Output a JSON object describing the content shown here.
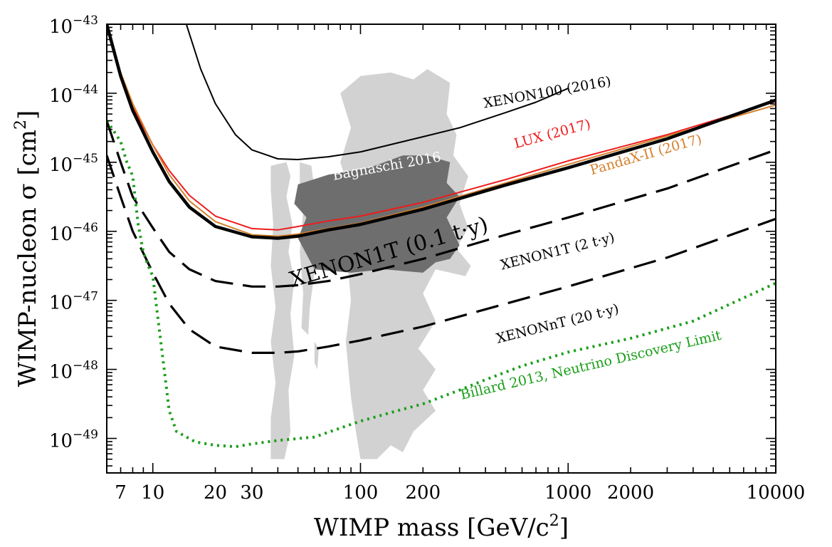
{
  "chart_data": {
    "type": "line",
    "title": "",
    "xlabel": "WIMP mass [GeV/c2]",
    "ylabel": "WIMP-nucleon σ [cm2]",
    "xscale": "log",
    "yscale": "log",
    "xlim": [
      6,
      10000
    ],
    "ylim_exp": [
      -49.5,
      -43
    ],
    "x_ticks": [
      {
        "value": 7,
        "label": "7"
      },
      {
        "value": 10,
        "label": "10"
      },
      {
        "value": 20,
        "label": "20"
      },
      {
        "value": 30,
        "label": "30"
      },
      {
        "value": 100,
        "label": "100"
      },
      {
        "value": 200,
        "label": "200"
      },
      {
        "value": 1000,
        "label": "1000"
      },
      {
        "value": 2000,
        "label": "2000"
      },
      {
        "value": 10000,
        "label": "10000"
      }
    ],
    "y_ticks": [
      {
        "exp": -43,
        "label": "10",
        "sup": "−43"
      },
      {
        "exp": -44,
        "label": "10",
        "sup": "−44"
      },
      {
        "exp": -45,
        "label": "10",
        "sup": "−45"
      },
      {
        "exp": -46,
        "label": "10",
        "sup": "−46"
      },
      {
        "exp": -47,
        "label": "10",
        "sup": "−47"
      },
      {
        "exp": -48,
        "label": "10",
        "sup": "−48"
      },
      {
        "exp": -49,
        "label": "10",
        "sup": "−49"
      }
    ],
    "regions": [
      {
        "name": "Bagnaschi 2016",
        "color": "#6e6e6e",
        "outline": [
          [
            50,
            -45.32
          ],
          [
            70,
            -45.18
          ],
          [
            110,
            -45.08
          ],
          [
            160,
            -44.9
          ],
          [
            210,
            -44.9
          ],
          [
            270,
            -45.0
          ],
          [
            260,
            -45.3
          ],
          [
            300,
            -45.5
          ],
          [
            260,
            -45.8
          ],
          [
            300,
            -46.2
          ],
          [
            270,
            -46.4
          ],
          [
            230,
            -46.45
          ],
          [
            200,
            -46.6
          ],
          [
            130,
            -46.55
          ],
          [
            90,
            -46.6
          ],
          [
            60,
            -46.55
          ],
          [
            50,
            -46.1
          ],
          [
            55,
            -45.8
          ],
          [
            48,
            -45.6
          ]
        ]
      },
      {
        "name": "",
        "color": "#d2d2d2",
        "outline": [
          [
            80,
            -44.0
          ],
          [
            100,
            -43.75
          ],
          [
            140,
            -43.7
          ],
          [
            180,
            -43.8
          ],
          [
            210,
            -43.65
          ],
          [
            270,
            -43.85
          ],
          [
            260,
            -44.3
          ],
          [
            290,
            -44.6
          ],
          [
            280,
            -44.9
          ],
          [
            330,
            -45.2
          ],
          [
            300,
            -45.6
          ],
          [
            330,
            -45.95
          ],
          [
            290,
            -46.25
          ],
          [
            340,
            -46.5
          ],
          [
            320,
            -46.65
          ],
          [
            230,
            -46.55
          ],
          [
            200,
            -46.9
          ],
          [
            230,
            -47.3
          ],
          [
            190,
            -47.7
          ],
          [
            230,
            -48.0
          ],
          [
            200,
            -48.3
          ],
          [
            230,
            -48.6
          ],
          [
            180,
            -48.9
          ],
          [
            160,
            -49.2
          ],
          [
            140,
            -49.1
          ],
          [
            120,
            -49.3
          ],
          [
            100,
            -49.3
          ],
          [
            95,
            -48.9
          ],
          [
            90,
            -48.4
          ],
          [
            85,
            -47.6
          ],
          [
            90,
            -47.0
          ],
          [
            85,
            -46.2
          ],
          [
            90,
            -45.5
          ],
          [
            80,
            -45.0
          ],
          [
            90,
            -44.5
          ]
        ]
      },
      {
        "name": "",
        "color": "#d2d2d2",
        "outline": [
          [
            37,
            -45.05
          ],
          [
            44,
            -45.0
          ],
          [
            46,
            -45.2
          ],
          [
            44,
            -45.5
          ],
          [
            47,
            -45.9
          ],
          [
            45,
            -46.3
          ],
          [
            48,
            -46.7
          ],
          [
            46,
            -47.2
          ],
          [
            48,
            -47.8
          ],
          [
            45,
            -48.3
          ],
          [
            46,
            -48.9
          ],
          [
            43,
            -49.3
          ],
          [
            37,
            -49.3
          ],
          [
            37,
            -48.7
          ],
          [
            39,
            -48.2
          ],
          [
            37,
            -47.6
          ],
          [
            39,
            -47.1
          ],
          [
            37,
            -46.5
          ],
          [
            38,
            -45.9
          ],
          [
            37,
            -45.4
          ]
        ]
      },
      {
        "name": "",
        "color": "#d2d2d2",
        "outline": [
          [
            51,
            -45.0
          ],
          [
            58,
            -45.05
          ],
          [
            60,
            -45.4
          ],
          [
            58,
            -46.0
          ],
          [
            60,
            -46.6
          ],
          [
            57,
            -47.1
          ],
          [
            56,
            -47.5
          ],
          [
            52,
            -47.4
          ],
          [
            53,
            -46.9
          ],
          [
            51,
            -46.3
          ],
          [
            53,
            -45.7
          ],
          [
            51,
            -45.3
          ]
        ]
      },
      {
        "name": "",
        "color": "#d2d2d2",
        "outline": [
          [
            60,
            -47.6
          ],
          [
            63,
            -47.7
          ],
          [
            62,
            -48.0
          ],
          [
            60,
            -47.9
          ]
        ]
      }
    ],
    "series": [
      {
        "name": "XENON100 (2016)",
        "color": "#000000",
        "style": "solid",
        "width": 2,
        "x": [
          14.5,
          17,
          20,
          25,
          30,
          40,
          50,
          70,
          100,
          200,
          300,
          500,
          700,
          1000
        ],
        "y_exp": [
          -43,
          -43.65,
          -44.15,
          -44.6,
          -44.82,
          -44.95,
          -44.96,
          -44.92,
          -44.85,
          -44.63,
          -44.5,
          -44.28,
          -44.13,
          -43.93
        ]
      },
      {
        "name": "LUX (2017)",
        "color": "#ee1c1c",
        "style": "solid",
        "width": 2,
        "x": [
          6,
          7,
          8,
          10,
          12,
          15,
          20,
          30,
          40,
          50,
          70,
          100,
          200,
          500,
          1000,
          3000,
          10000
        ],
        "y_exp": [
          -43,
          -43.75,
          -44.2,
          -44.75,
          -45.12,
          -45.48,
          -45.78,
          -45.96,
          -45.98,
          -45.93,
          -45.85,
          -45.78,
          -45.58,
          -45.25,
          -44.98,
          -44.6,
          -44.12
        ]
      },
      {
        "name": "PandaX-II (2017)",
        "color": "#d5802c",
        "style": "solid",
        "width": 2,
        "x": [
          6,
          7,
          8,
          10,
          12,
          15,
          20,
          30,
          40,
          50,
          70,
          100,
          200,
          500,
          1000,
          3000,
          10000
        ],
        "y_exp": [
          -43,
          -43.7,
          -44.15,
          -44.75,
          -45.18,
          -45.56,
          -45.86,
          -46.05,
          -46.07,
          -46.04,
          -45.96,
          -45.88,
          -45.65,
          -45.3,
          -45.03,
          -44.62,
          -44.17
        ]
      },
      {
        "name": "XENON1T (0.1 t·y)",
        "color": "#000000",
        "style": "solid",
        "width": 4.5,
        "x": [
          6,
          7,
          8,
          10,
          12,
          15,
          20,
          30,
          40,
          50,
          70,
          100,
          200,
          500,
          1000,
          3000,
          10000
        ],
        "y_exp": [
          -43,
          -43.75,
          -44.25,
          -44.85,
          -45.28,
          -45.65,
          -45.93,
          -46.08,
          -46.1,
          -46.07,
          -45.98,
          -45.9,
          -45.68,
          -45.33,
          -45.08,
          -44.66,
          -44.1
        ]
      },
      {
        "name": "XENON1T (2 t·y)",
        "color": "#000000",
        "style": "dashed",
        "width": 3.2,
        "x": [
          6,
          7,
          8,
          10,
          12,
          15,
          20,
          30,
          40,
          50,
          70,
          100,
          200,
          500,
          1000,
          3000,
          10000
        ],
        "y_exp": [
          -44.4,
          -45.0,
          -45.5,
          -45.95,
          -46.3,
          -46.55,
          -46.72,
          -46.8,
          -46.8,
          -46.78,
          -46.72,
          -46.62,
          -46.4,
          -46.05,
          -45.8,
          -45.38,
          -44.82
        ]
      },
      {
        "name": "XENONnT (20 t·y)",
        "color": "#000000",
        "style": "dashed",
        "width": 3.2,
        "x": [
          6,
          7,
          8,
          10,
          12,
          15,
          20,
          30,
          40,
          50,
          70,
          100,
          200,
          500,
          1000,
          3000,
          10000
        ],
        "y_exp": [
          -44.9,
          -45.5,
          -46.0,
          -46.6,
          -47.05,
          -47.42,
          -47.67,
          -47.76,
          -47.76,
          -47.74,
          -47.67,
          -47.58,
          -47.38,
          -47.05,
          -46.8,
          -46.38,
          -45.82
        ]
      },
      {
        "name": "Billard 2013, Neutrino Discovery Limit",
        "color": "#1a9e1a",
        "style": "dotted",
        "width": 4,
        "x": [
          6,
          6.5,
          7,
          7.5,
          8,
          8.5,
          9,
          9.5,
          10,
          12,
          13,
          16,
          20,
          25,
          30,
          40,
          60,
          100,
          150,
          200,
          300,
          400,
          600,
          1000,
          2000,
          4000,
          10000
        ],
        "y_exp": [
          -44.4,
          -44.55,
          -44.7,
          -45.0,
          -45.2,
          -45.9,
          -46.3,
          -46.5,
          -46.65,
          -48.6,
          -48.9,
          -49.05,
          -49.1,
          -49.12,
          -49.08,
          -49.03,
          -48.98,
          -48.75,
          -48.6,
          -48.5,
          -48.3,
          -48.15,
          -47.95,
          -47.75,
          -47.55,
          -47.3,
          -46.75
        ]
      }
    ],
    "annotations": [
      {
        "text": "XENON100 (2016)",
        "color": "#000000",
        "x": 800,
        "y_exp": -44.05,
        "angle": -10
      },
      {
        "text": "LUX (2017)",
        "color": "#ee1c1c",
        "x": 850,
        "y_exp": -44.65,
        "angle": -15
      },
      {
        "text": "PandaX-II (2017)",
        "color": "#d5802c",
        "x": 2400,
        "y_exp": -44.95,
        "angle": -16
      },
      {
        "text": "Bagnaschi 2016",
        "color": "#ffffff",
        "x": 135,
        "y_exp": -45.12,
        "angle": -10
      },
      {
        "text": "XENON1T (0.1 t·y)",
        "color": "#000000",
        "x": 140,
        "y_exp": -46.4,
        "angle": -16
      },
      {
        "text": "XENON1T (2 t·y)",
        "color": "#000000",
        "x": 900,
        "y_exp": -46.35,
        "angle": -14
      },
      {
        "text": "XENONnT (20 t·y)",
        "color": "#000000",
        "x": 900,
        "y_exp": -47.4,
        "angle": -14
      },
      {
        "text": "Billard 2013, Neutrino Discovery Limit",
        "color": "#1a9e1a",
        "x": 1300,
        "y_exp": -48.0,
        "angle": -13
      }
    ]
  }
}
